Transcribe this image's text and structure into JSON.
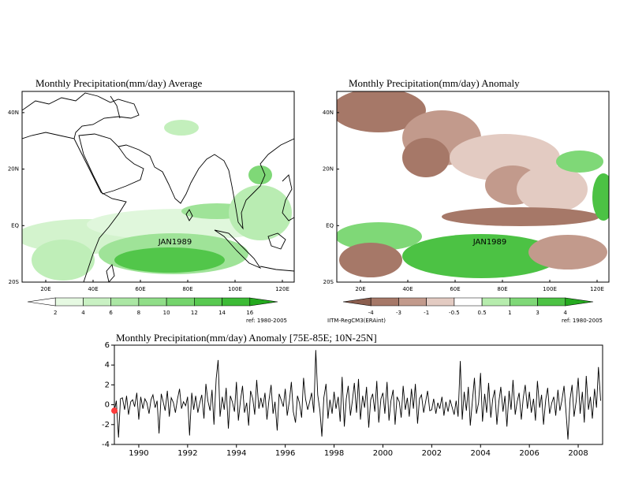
{
  "chart_data": [
    {
      "type": "map",
      "title": "Monthly Precipitation(mm/day) Average",
      "annotation": "JAN1989",
      "footnote": "ref: 1980-2005",
      "lonlim": [
        10,
        125
      ],
      "latlim": [
        -20,
        47.5
      ],
      "xticks": [
        {
          "value": 20,
          "label": "20E"
        },
        {
          "value": 40,
          "label": "40E"
        },
        {
          "value": 60,
          "label": "60E"
        },
        {
          "value": 80,
          "label": "80E"
        },
        {
          "value": 100,
          "label": "100E"
        },
        {
          "value": 120,
          "label": "120E"
        }
      ],
      "yticks": [
        {
          "value": 40,
          "label": "40N"
        },
        {
          "value": 20,
          "label": "20N"
        },
        {
          "value": 0,
          "label": "EQ"
        },
        {
          "value": -20,
          "label": "20S"
        }
      ],
      "colorbar": {
        "ticks": [
          2,
          4,
          6,
          8,
          10,
          12,
          14,
          16
        ],
        "colors": [
          "#ffffff",
          "#e6f9e2",
          "#c9f1c3",
          "#abe7a4",
          "#90de88",
          "#74d46c",
          "#58c950",
          "#3dbb36",
          "#24a91e"
        ]
      }
    },
    {
      "type": "map",
      "title": "Monthly Precipitation(mm/day) Anomaly",
      "annotation": "JAN1989",
      "footnote": "ref: 1980-2005",
      "source": "IITM-RegCM3(ERAint)",
      "lonlim": [
        10,
        125
      ],
      "latlim": [
        -20,
        47.5
      ],
      "xticks": [
        {
          "value": 20,
          "label": "20E"
        },
        {
          "value": 40,
          "label": "40E"
        },
        {
          "value": 60,
          "label": "60E"
        },
        {
          "value": 80,
          "label": "80E"
        },
        {
          "value": 100,
          "label": "100E"
        },
        {
          "value": 120,
          "label": "120E"
        }
      ],
      "yticks": [
        {
          "value": 40,
          "label": "40N"
        },
        {
          "value": 20,
          "label": "20N"
        },
        {
          "value": 0,
          "label": "EQ"
        },
        {
          "value": -20,
          "label": "20S"
        }
      ],
      "colorbar": {
        "ticks": [
          -4,
          -3,
          -1,
          -0.5,
          0.5,
          1,
          3,
          4
        ],
        "colors": [
          "#8b5e4e",
          "#a67868",
          "#c29a8c",
          "#e3cbc2",
          "#ffffff",
          "#b6ecad",
          "#7fd877",
          "#4cc244",
          "#25aa1f"
        ]
      }
    },
    {
      "type": "line",
      "title": "Monthly Precipitation(mm/day) Anomaly [75E-85E; 10N-25N]",
      "xlim": [
        1989,
        2009
      ],
      "xticks": [
        1990,
        1992,
        1994,
        1996,
        1998,
        2000,
        2002,
        2004,
        2006,
        2008
      ],
      "ylim": [
        -4,
        6
      ],
      "yticks": [
        -4,
        -2,
        0,
        2,
        4,
        6
      ],
      "highlight": {
        "x": 1989,
        "value": -0.6,
        "color": "#ff3b3b"
      },
      "x": [
        1989.0,
        1989.08,
        1989.17,
        1989.25,
        1989.33,
        1989.42,
        1989.5,
        1989.58,
        1989.67,
        1989.75,
        1989.83,
        1989.92,
        1990.0,
        1990.08,
        1990.17,
        1990.25,
        1990.33,
        1990.42,
        1990.5,
        1990.58,
        1990.67,
        1990.75,
        1990.83,
        1990.92,
        1991.0,
        1991.08,
        1991.17,
        1991.25,
        1991.33,
        1991.42,
        1991.5,
        1991.58,
        1991.67,
        1991.75,
        1991.83,
        1991.92,
        1992.0,
        1992.08,
        1992.17,
        1992.25,
        1992.33,
        1992.42,
        1992.5,
        1992.58,
        1992.67,
        1992.75,
        1992.83,
        1992.92,
        1993.0,
        1993.08,
        1993.17,
        1993.25,
        1993.33,
        1993.42,
        1993.5,
        1993.58,
        1993.67,
        1993.75,
        1993.83,
        1993.92,
        1994.0,
        1994.08,
        1994.17,
        1994.25,
        1994.33,
        1994.42,
        1994.5,
        1994.58,
        1994.67,
        1994.75,
        1994.83,
        1994.92,
        1995.0,
        1995.08,
        1995.17,
        1995.25,
        1995.33,
        1995.42,
        1995.5,
        1995.58,
        1995.67,
        1995.75,
        1995.83,
        1995.92,
        1996.0,
        1996.08,
        1996.17,
        1996.25,
        1996.33,
        1996.42,
        1996.5,
        1996.58,
        1996.67,
        1996.75,
        1996.83,
        1996.92,
        1997.0,
        1997.08,
        1997.17,
        1997.25,
        1997.33,
        1997.42,
        1997.5,
        1997.58,
        1997.67,
        1997.75,
        1997.83,
        1997.92,
        1998.0,
        1998.08,
        1998.17,
        1998.25,
        1998.33,
        1998.42,
        1998.5,
        1998.58,
        1998.67,
        1998.75,
        1998.83,
        1998.92,
        1999.0,
        1999.08,
        1999.17,
        1999.25,
        1999.33,
        1999.42,
        1999.5,
        1999.58,
        1999.67,
        1999.75,
        1999.83,
        1999.92,
        2000.0,
        2000.08,
        2000.17,
        2000.25,
        2000.33,
        2000.42,
        2000.5,
        2000.58,
        2000.67,
        2000.75,
        2000.83,
        2000.92,
        2001.0,
        2001.08,
        2001.17,
        2001.25,
        2001.33,
        2001.42,
        2001.5,
        2001.58,
        2001.67,
        2001.75,
        2001.83,
        2001.92,
        2002.0,
        2002.08,
        2002.17,
        2002.25,
        2002.33,
        2002.42,
        2002.5,
        2002.58,
        2002.67,
        2002.75,
        2002.83,
        2002.92,
        2003.0,
        2003.08,
        2003.17,
        2003.25,
        2003.33,
        2003.42,
        2003.5,
        2003.58,
        2003.67,
        2003.75,
        2003.83,
        2003.92,
        2004.0,
        2004.08,
        2004.17,
        2004.25,
        2004.33,
        2004.42,
        2004.5,
        2004.58,
        2004.67,
        2004.75,
        2004.83,
        2004.92,
        2005.0,
        2005.08,
        2005.17,
        2005.25,
        2005.33,
        2005.42,
        2005.5,
        2005.58,
        2005.67,
        2005.75,
        2005.83,
        2005.92,
        2006.0,
        2006.08,
        2006.17,
        2006.25,
        2006.33,
        2006.42,
        2006.5,
        2006.58,
        2006.67,
        2006.75,
        2006.83,
        2006.92,
        2007.0,
        2007.08,
        2007.17,
        2007.25,
        2007.33,
        2007.42,
        2007.5,
        2007.58,
        2007.67,
        2007.75,
        2007.83,
        2007.92,
        2008.0,
        2008.08,
        2008.17,
        2008.25,
        2008.33,
        2008.42,
        2008.5,
        2008.58,
        2008.67,
        2008.75,
        2008.83,
        2008.92
      ],
      "values": [
        -0.6,
        0.4,
        -3.3,
        0.6,
        0.7,
        -0.5,
        0.9,
        -1.0,
        0.3,
        0.5,
        -0.2,
        1.2,
        -1.5,
        0.8,
        -0.4,
        0.6,
        0.2,
        -0.9,
        0.5,
        1.0,
        -0.3,
        0.4,
        -2.9,
        1.1,
        0.3,
        -0.6,
        1.4,
        -1.2,
        0.7,
        0.2,
        -0.8,
        0.5,
        1.6,
        -0.4,
        0.3,
        -0.1,
        0.8,
        -3.1,
        1.2,
        -0.5,
        0.9,
        -0.8,
        0.2,
        1.0,
        -1.4,
        2.1,
        0.4,
        -0.6,
        1.5,
        -2.0,
        2.6,
        4.5,
        -1.2,
        0.8,
        -0.5,
        1.7,
        -2.4,
        0.9,
        0.3,
        -0.7,
        2.3,
        -1.6,
        0.5,
        1.9,
        -0.8,
        0.2,
        -2.1,
        1.4,
        0.6,
        -1.0,
        2.5,
        -0.4,
        0.7,
        -0.3,
        1.2,
        -1.5,
        0.4,
        2.0,
        -0.9,
        0.3,
        -2.6,
        1.1,
        0.5,
        -0.2,
        1.6,
        -1.1,
        0.4,
        2.3,
        -0.7,
        -1.8,
        0.9,
        0.2,
        -1.3,
        2.7,
        0.6,
        -0.5,
        0.3,
        1.2,
        -0.8,
        5.5,
        1.0,
        -0.6,
        -3.2,
        0.7,
        2.1,
        -1.4,
        0.5,
        -0.9,
        1.3,
        -0.4,
        0.8,
        -1.7,
        2.8,
        -2.2,
        0.6,
        1.9,
        -1.1,
        0.4,
        2.2,
        -0.8,
        2.6,
        -1.5,
        0.9,
        -0.3,
        1.8,
        -2.3,
        0.5,
        1.1,
        -0.7,
        2.4,
        -1.8,
        0.6,
        1.2,
        -0.9,
        2.3,
        -1.6,
        0.4,
        1.5,
        -2.0,
        0.8,
        0.3,
        -1.3,
        1.9,
        -0.5,
        0.7,
        -1.2,
        1.6,
        -0.4,
        2.1,
        -1.9,
        0.6,
        1.0,
        -0.8,
        0.3,
        1.4,
        -0.6,
        -0.5,
        0.6,
        -0.9,
        0.2,
        -0.4,
        0.8,
        -1.1,
        0.3,
        -0.7,
        0.5,
        -0.2,
        -1.0,
        0.4,
        -1.2,
        4.4,
        -1.5,
        1.3,
        -0.6,
        1.8,
        -2.1,
        0.5,
        2.7,
        -0.9,
        0.2,
        3.2,
        -1.7,
        1.1,
        -0.8,
        2.2,
        -1.3,
        0.6,
        1.5,
        -2.0,
        0.3,
        1.8,
        -0.7,
        0.9,
        -2.2,
        1.4,
        -0.5,
        2.5,
        -1.0,
        0.3,
        1.2,
        -1.5,
        0.7,
        2.0,
        -0.4,
        1.3,
        -0.8,
        0.6,
        -1.6,
        2.4,
        -0.3,
        1.0,
        -2.0,
        0.5,
        1.7,
        -0.9,
        0.2,
        0.8,
        -1.1,
        1.5,
        -0.6,
        0.4,
        1.9,
        -0.7,
        -3.5,
        0.6,
        2.0,
        -1.2,
        0.4,
        2.7,
        -0.9,
        1.3,
        -1.8,
        2.9,
        -0.5,
        0.8,
        -1.4,
        1.6,
        -0.3,
        3.8,
        0.4
      ]
    }
  ]
}
